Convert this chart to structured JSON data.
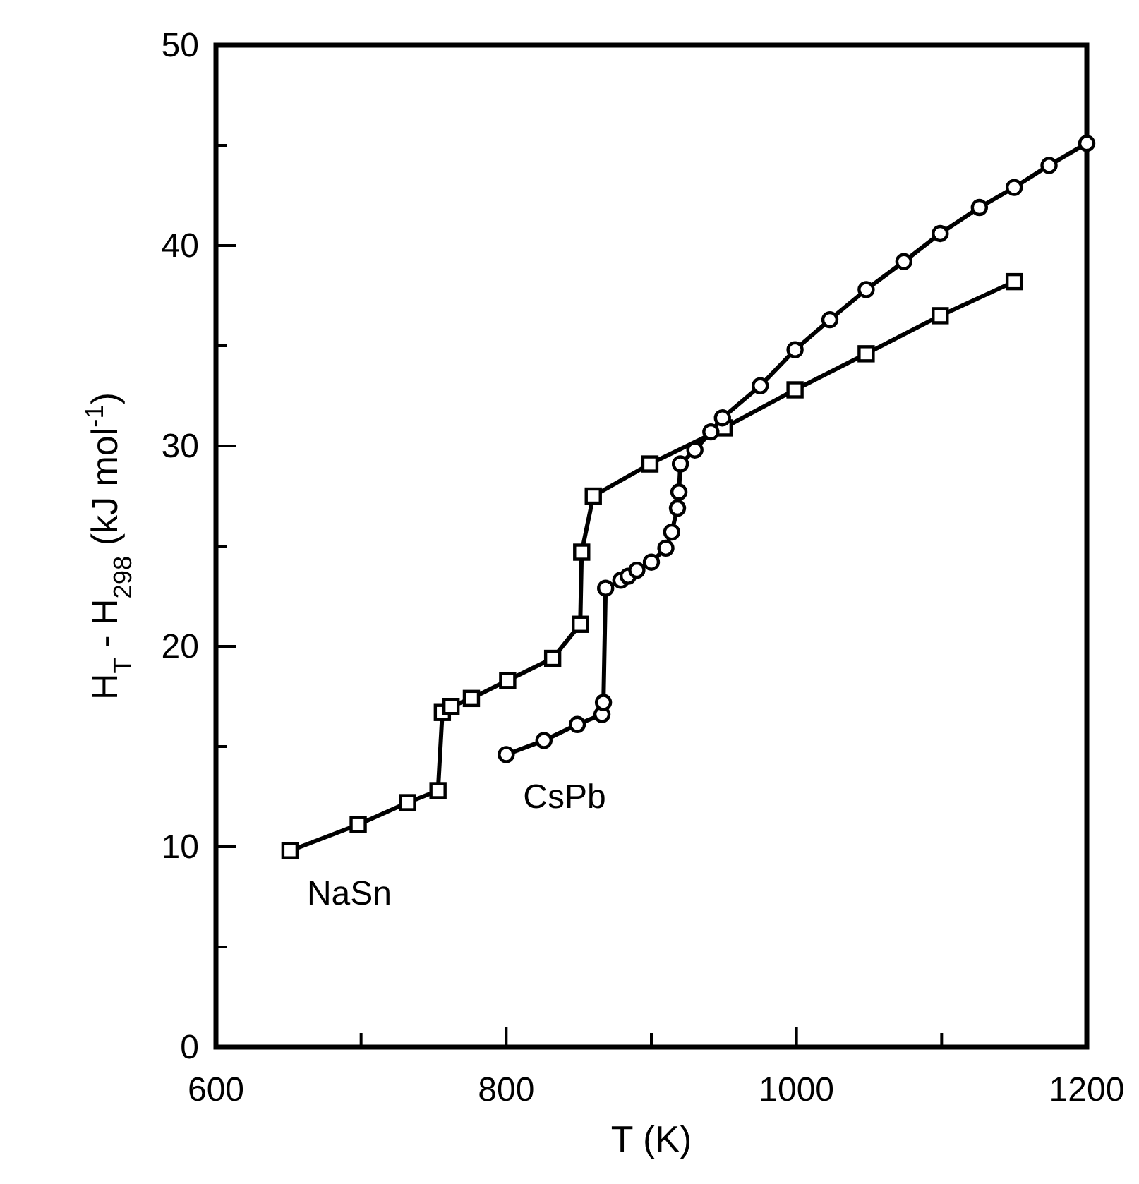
{
  "chart_data": {
    "type": "line",
    "xlabel": "T (K)",
    "ylabel": "H$_{T}$ - H$_{298}$ (kJ mol$^{-1}$)",
    "xlim": [
      600,
      1200
    ],
    "xticks": [
      600,
      {
        "value": 700,
        "label": null
      },
      800,
      {
        "value": 900,
        "label": null
      },
      1000,
      {
        "value": 1100,
        "label": null
      },
      1200
    ],
    "ylim": [
      0,
      50
    ],
    "yticks": [
      0,
      {
        "value": 5,
        "label": null
      },
      10,
      {
        "value": 15,
        "label": null
      },
      20,
      {
        "value": 25,
        "label": null
      },
      30,
      {
        "value": 35,
        "label": null
      },
      40,
      {
        "value": 45,
        "label": null
      },
      50
    ],
    "grid": false,
    "line_style": "solid",
    "series": [
      {
        "name": "NaSn",
        "color": "#000000",
        "marker": "square",
        "x": [
          651,
          698,
          732,
          753,
          756,
          762,
          776,
          801,
          832,
          851,
          852,
          860,
          899,
          950,
          999,
          1048,
          1099,
          1150
        ],
        "values": [
          9.8,
          11.1,
          12.2,
          12.8,
          16.7,
          17.0,
          17.4,
          18.3,
          19.4,
          21.1,
          24.7,
          27.5,
          29.1,
          30.9,
          32.8,
          34.6,
          36.5,
          38.2
        ]
      },
      {
        "name": "CsPb",
        "color": "#000000",
        "marker": "circle",
        "x": [
          800,
          826,
          849,
          866,
          867,
          868.5,
          879,
          884,
          890,
          900,
          910,
          914,
          918,
          919,
          920,
          930,
          941,
          949,
          975,
          999,
          1023,
          1048,
          1074,
          1099,
          1126,
          1150,
          1174,
          1200
        ],
        "values": [
          14.6,
          15.3,
          16.1,
          16.6,
          17.2,
          22.9,
          23.3,
          23.5,
          23.8,
          24.2,
          24.9,
          25.7,
          26.9,
          27.7,
          29.1,
          29.8,
          30.7,
          31.4,
          33.0,
          34.8,
          36.3,
          37.8,
          39.2,
          40.6,
          41.9,
          42.9,
          44.0,
          45.1
        ]
      }
    ]
  }
}
